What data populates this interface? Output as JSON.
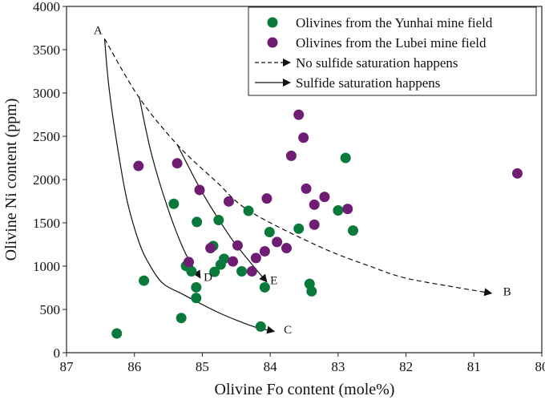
{
  "chart_data": {
    "type": "scatter",
    "title": "",
    "xlabel": "Olivine Fo content (mole%)",
    "ylabel": "Olivine Ni content (ppm)",
    "xlim": [
      87,
      80
    ],
    "ylim": [
      0,
      4000
    ],
    "x_ticks": [
      87,
      86,
      85,
      84,
      83,
      82,
      81,
      80
    ],
    "y_ticks": [
      0,
      500,
      1000,
      1500,
      2000,
      2500,
      3000,
      3500,
      4000
    ],
    "grid": false,
    "legend_position": "top-right",
    "series": [
      {
        "name": "Olivines from the Yunhai mine field",
        "color": "#0a7a3c",
        "points": [
          [
            86.26,
            222
          ],
          [
            85.86,
            832
          ],
          [
            85.42,
            1720
          ],
          [
            85.08,
            1510
          ],
          [
            84.76,
            1532
          ],
          [
            84.84,
            1233
          ],
          [
            85.24,
            1002
          ],
          [
            85.16,
            940
          ],
          [
            84.82,
            934
          ],
          [
            84.73,
            1017
          ],
          [
            84.68,
            1085
          ],
          [
            85.09,
            755
          ],
          [
            85.09,
            632
          ],
          [
            85.31,
            401
          ],
          [
            84.42,
            940
          ],
          [
            84.32,
            1639
          ],
          [
            84.01,
            1393
          ],
          [
            84.08,
            755
          ],
          [
            84.14,
            302
          ],
          [
            83.58,
            1433
          ],
          [
            83.42,
            795
          ],
          [
            83.39,
            709
          ],
          [
            83.0,
            1643
          ],
          [
            82.89,
            2250
          ],
          [
            82.78,
            1411
          ]
        ]
      },
      {
        "name": "Olivines from the Lubei mine field",
        "color": "#6e1d72",
        "points": [
          [
            85.94,
            2157
          ],
          [
            85.37,
            2188
          ],
          [
            85.04,
            1880
          ],
          [
            84.61,
            1747
          ],
          [
            84.05,
            1781
          ],
          [
            84.88,
            1208
          ],
          [
            84.48,
            1239
          ],
          [
            85.2,
            1048
          ],
          [
            84.55,
            1054
          ],
          [
            84.27,
            940
          ],
          [
            84.21,
            1094
          ],
          [
            84.08,
            1171
          ],
          [
            83.9,
            1279
          ],
          [
            83.76,
            1208
          ],
          [
            83.69,
            2274
          ],
          [
            83.58,
            2749
          ],
          [
            83.51,
            2484
          ],
          [
            83.47,
            1895
          ],
          [
            83.35,
            1710
          ],
          [
            83.2,
            1800
          ],
          [
            83.35,
            1479
          ],
          [
            82.86,
            1661
          ],
          [
            80.36,
            2071
          ]
        ]
      }
    ],
    "trends": [
      {
        "name": "No sulfide saturation happens",
        "style": "dashed",
        "from": "A",
        "to": "B",
        "points": [
          [
            86.44,
            3627
          ],
          [
            85.94,
            2958
          ],
          [
            85.37,
            2404
          ],
          [
            84.8,
            1980
          ],
          [
            84.3,
            1633
          ],
          [
            83.25,
            1217
          ],
          [
            82.5,
            990
          ],
          [
            82.01,
            863
          ],
          [
            81.3,
            760
          ],
          [
            80.74,
            687
          ]
        ]
      },
      {
        "name": "Sulfide saturation happens",
        "style": "solid",
        "from": "A",
        "to": "C",
        "points": [
          [
            86.44,
            3627
          ],
          [
            86.38,
            3100
          ],
          [
            86.28,
            2527
          ],
          [
            86.12,
            1800
          ],
          [
            85.94,
            1294
          ],
          [
            85.78,
            1020
          ],
          [
            85.58,
            800
          ],
          [
            85.3,
            680
          ],
          [
            85.07,
            585
          ],
          [
            84.78,
            470
          ],
          [
            84.48,
            370
          ],
          [
            84.2,
            290
          ],
          [
            83.94,
            246
          ]
        ]
      },
      {
        "name": "Sulfide saturation happens",
        "style": "solid",
        "from": "A",
        "to": "D",
        "points": [
          [
            85.93,
            2958
          ],
          [
            85.75,
            2300
          ],
          [
            85.5,
            1650
          ],
          [
            85.25,
            1150
          ],
          [
            85.03,
            863
          ]
        ]
      },
      {
        "name": "Sulfide saturation happens",
        "style": "solid",
        "from": "A",
        "to": "E",
        "points": [
          [
            85.37,
            2404
          ],
          [
            85.0,
            1850
          ],
          [
            84.6,
            1350
          ],
          [
            84.3,
            1050
          ],
          [
            84.05,
            817
          ]
        ]
      }
    ],
    "annotations": [
      {
        "text": "A",
        "x": 86.6,
        "y": 3680
      },
      {
        "text": "B",
        "x": 80.57,
        "y": 660
      },
      {
        "text": "C",
        "x": 83.8,
        "y": 220
      },
      {
        "text": "D",
        "x": 84.98,
        "y": 830
      },
      {
        "text": "E",
        "x": 84.0,
        "y": 790
      }
    ],
    "legend": [
      {
        "label": "Olivines from the Yunhai mine field",
        "kind": "dot",
        "color": "#0a7a3c"
      },
      {
        "label": "Olivines from the Lubei mine field",
        "kind": "dot",
        "color": "#6e1d72"
      },
      {
        "label": "No sulfide saturation happens",
        "kind": "dashed-arrow"
      },
      {
        "label": "Sulfide saturation happens",
        "kind": "solid-arrow"
      }
    ]
  }
}
